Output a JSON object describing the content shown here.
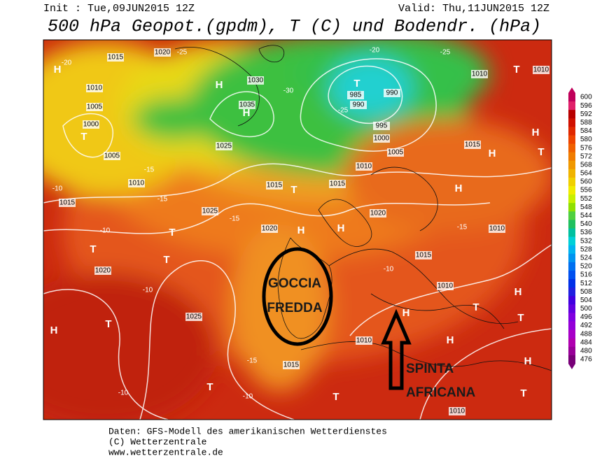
{
  "header": {
    "init": "Init : Tue,09JUN2015 12Z",
    "valid": "Valid: Thu,11JUN2015 12Z"
  },
  "title": "500 hPa Geopot.(gpdm), T (C) und Bodendr. (hPa)",
  "legend": {
    "values": [
      "600",
      "596",
      "592",
      "588",
      "584",
      "580",
      "576",
      "572",
      "568",
      "564",
      "560",
      "556",
      "552",
      "548",
      "544",
      "540",
      "536",
      "532",
      "528",
      "524",
      "520",
      "516",
      "512",
      "508",
      "504",
      "500",
      "496",
      "492",
      "488",
      "484",
      "480",
      "476"
    ],
    "colors": [
      "#c0005a",
      "#e0206a",
      "#b80000",
      "#d01000",
      "#e02800",
      "#ee4400",
      "#f06000",
      "#f07c00",
      "#f09800",
      "#f0b400",
      "#f0d000",
      "#f0ec00",
      "#c8f000",
      "#90e000",
      "#50d040",
      "#20c060",
      "#00c0a0",
      "#00d0d8",
      "#00b4f0",
      "#0094f0",
      "#0070f0",
      "#0050f0",
      "#0030e8",
      "#2020e0",
      "#4000e0",
      "#6000e0",
      "#8000e0",
      "#9400d8",
      "#a800c8",
      "#b000b0",
      "#980098",
      "#780078"
    ]
  },
  "map": {
    "labels": [
      "H",
      "1015",
      "1020",
      "H",
      "1030",
      "1025",
      "1035",
      "H",
      "T",
      "985",
      "990",
      "990",
      "995",
      "1000",
      "1005",
      "1010",
      "1010",
      "T",
      "1010",
      "H",
      "H",
      "T",
      "1015",
      "1010",
      "1005",
      "1000",
      "T",
      "1005",
      "1010",
      "1015",
      "1025",
      "1020",
      "H",
      "H",
      "1020",
      "H",
      "1015",
      "T",
      "1015",
      "T",
      "T",
      "1020",
      "T",
      "1025",
      "H",
      "T",
      "1015",
      "T",
      "T",
      "1010",
      "H",
      "H",
      "T",
      "H",
      "1010",
      "1015",
      "1010",
      "T",
      "H",
      "T",
      "1010",
      "-20",
      "-25",
      "-30",
      "-25",
      "-20",
      "-25",
      "-15",
      "-10",
      "-15",
      "-15",
      "-10",
      "-10",
      "-15",
      "-10",
      "-10",
      "-15",
      "-10"
    ]
  },
  "annotations": {
    "cold": [
      "GOCCIA",
      "FREDDA"
    ],
    "push": [
      "SPINTA",
      "AFRICANA"
    ]
  },
  "footer": [
    "Daten: GFS-Modell des amerikanischen Wetterdienstes",
    "(C) Wetterzentrale",
    "www.wetterzentrale.de"
  ]
}
